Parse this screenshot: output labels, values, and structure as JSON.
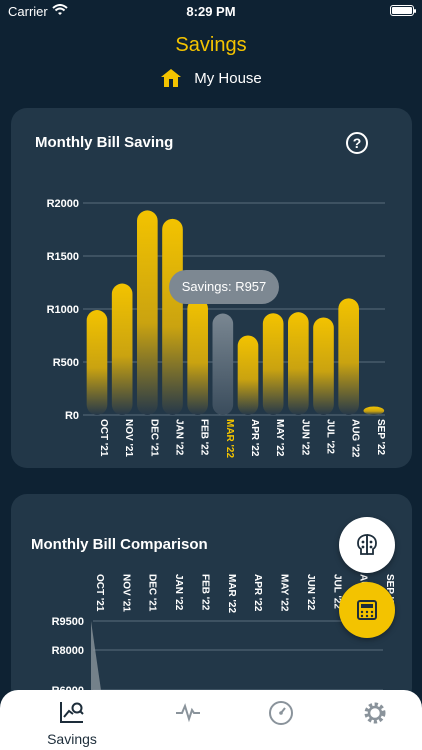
{
  "status": {
    "carrier": "Carrier",
    "time": "8:29 PM"
  },
  "header": {
    "title": "Savings",
    "house": "My House"
  },
  "card1": {
    "title": "Monthly Bill Saving",
    "tooltip": "Savings: R957"
  },
  "card2": {
    "title": "Monthly Bill Comparison"
  },
  "tabs": {
    "savings_label": "Savings"
  },
  "icons": [
    "house-icon",
    "help-icon",
    "brain-icon",
    "calculator-icon",
    "savings-chart-icon",
    "activity-icon",
    "gauge-icon",
    "gear-icon"
  ],
  "colors": {
    "accent": "#f3c300",
    "background": "#0e2233",
    "card": "#223748",
    "selected_bar": "#6b7a86"
  },
  "chart_data": [
    {
      "type": "bar",
      "title": "Monthly Bill Saving",
      "categories": [
        "OCT '21",
        "NOV '21",
        "DEC '21",
        "JAN '22",
        "FEB '22",
        "MAR '22",
        "APR '22",
        "MAY '22",
        "JUN '22",
        "JUL '22",
        "AUG '22",
        "SEP '22"
      ],
      "values": [
        990,
        1240,
        1930,
        1850,
        1100,
        957,
        750,
        960,
        970,
        920,
        1100,
        80
      ],
      "selected_index": 5,
      "yticks": [
        "R0",
        "R500",
        "R1000",
        "R1500",
        "R2000"
      ],
      "ylim": [
        0,
        2000
      ]
    },
    {
      "type": "line",
      "title": "Monthly Bill Comparison",
      "categories": [
        "OCT '21",
        "NOV '21",
        "DEC '21",
        "JAN '22",
        "FEB '22",
        "MAR '22",
        "APR '22",
        "MAY '22",
        "JUN '22",
        "JUL '22",
        "AUG '22",
        "SEP '22"
      ],
      "yticks": [
        "R9500",
        "R8000",
        "R6000"
      ]
    }
  ]
}
